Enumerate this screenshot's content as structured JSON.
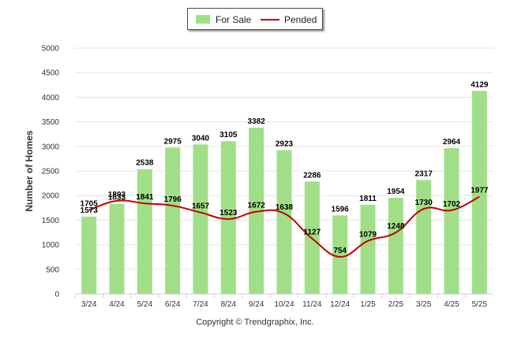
{
  "legend": {
    "bar_label": "For Sale",
    "line_label": "Pended"
  },
  "copyright": "Copyright © Trendgraphix, Inc.",
  "colors": {
    "bar": "#a0df88",
    "line": "#c00000",
    "grid": "#e6e6e6",
    "axis_text": "#333333"
  },
  "chart_data": {
    "type": "bar",
    "title": "",
    "xlabel": "",
    "ylabel": "Number of Homes",
    "ylim": [
      0,
      5000
    ],
    "yticks": [
      0,
      500,
      1000,
      1500,
      2000,
      2500,
      3000,
      3500,
      4000,
      4500,
      5000
    ],
    "grid": true,
    "legend_position": "top-center",
    "categories": [
      "3/24",
      "4/24",
      "5/24",
      "6/24",
      "7/24",
      "8/24",
      "9/24",
      "10/24",
      "11/24",
      "12/24",
      "1/25",
      "2/25",
      "3/25",
      "4/25",
      "5/25"
    ],
    "series": [
      {
        "name": "For Sale",
        "type": "bar",
        "values": [
          1573,
          1833,
          2538,
          2975,
          3040,
          3105,
          3382,
          2923,
          2286,
          1596,
          1811,
          1954,
          2317,
          2964,
          4129
        ]
      },
      {
        "name": "Pended",
        "type": "line",
        "values": [
          1705,
          1893,
          1841,
          1796,
          1657,
          1523,
          1672,
          1638,
          1127,
          754,
          1079,
          1248,
          1730,
          1702,
          1977
        ]
      }
    ]
  }
}
